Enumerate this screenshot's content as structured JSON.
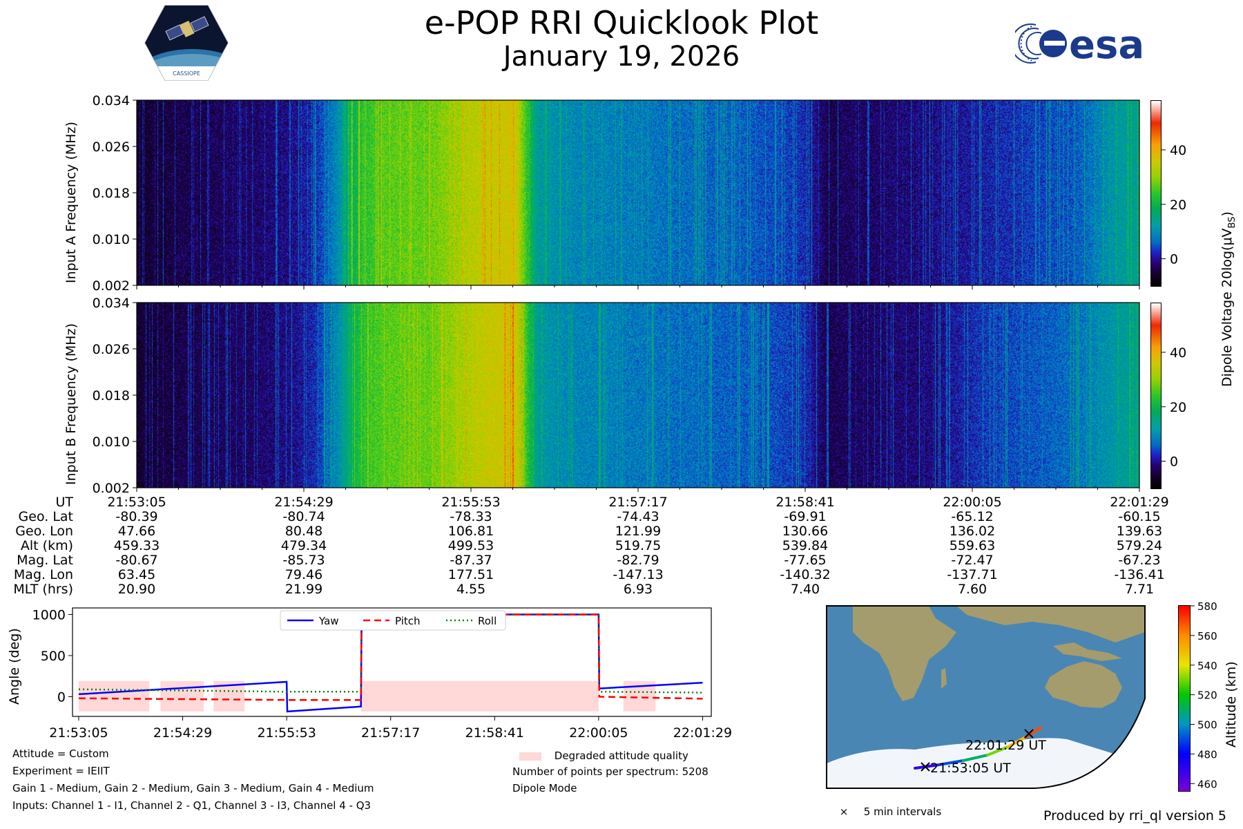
{
  "header": {
    "title": "e-POP RRI Quicklook Plot",
    "subtitle": "January 19, 2026",
    "left_logo": "CASSIOPE",
    "right_logo": "esa"
  },
  "colors": {
    "yaw": "#0000ff",
    "pitch": "#ff0000",
    "roll": "#008000",
    "degraded": "#ffd8d8",
    "ocean": "#4a86b4",
    "land": "#a49c6c",
    "ice": "#f2f6fa"
  },
  "chart_data": [
    {
      "type": "heatmap",
      "name": "spectrogram-input-a",
      "ylabel": "Input A Frequency (MHz)",
      "yticks": [
        "0.002",
        "0.010",
        "0.018",
        "0.026",
        "0.034"
      ],
      "ylim": [
        0.002,
        0.034
      ],
      "xtick_labels": [
        "21:53:05",
        "21:54:29",
        "21:55:53",
        "21:57:17",
        "21:58:41",
        "22:00:05",
        "22:01:29"
      ],
      "intensity_profile_db": [
        -6,
        -5,
        -4,
        -4,
        -3,
        -3,
        -2,
        -1,
        2,
        10,
        22,
        26,
        27,
        27,
        30,
        33,
        35,
        36,
        12,
        10,
        9,
        9,
        8,
        8,
        7,
        7,
        6,
        6,
        5,
        4,
        2,
        -4,
        -3,
        -3,
        -2,
        -2,
        -1,
        0,
        1,
        2,
        3,
        4,
        5,
        8,
        12,
        14
      ]
    },
    {
      "type": "heatmap",
      "name": "spectrogram-input-b",
      "ylabel": "Input B Frequency (MHz)",
      "yticks": [
        "0.002",
        "0.010",
        "0.018",
        "0.026",
        "0.034"
      ],
      "ylim": [
        0.002,
        0.034
      ],
      "xtick_labels": [
        "21:53:05",
        "21:54:29",
        "21:55:53",
        "21:57:17",
        "21:58:41",
        "22:00:05",
        "22:01:29"
      ],
      "intensity_profile_db": [
        -6,
        -5,
        -4,
        -4,
        -3,
        -3,
        -2,
        -1,
        2,
        10,
        22,
        26,
        27,
        27,
        30,
        33,
        35,
        36,
        12,
        10,
        9,
        9,
        8,
        8,
        7,
        7,
        6,
        6,
        5,
        4,
        2,
        -4,
        -3,
        -3,
        -2,
        -2,
        -1,
        1,
        3,
        4,
        5,
        6,
        7,
        9,
        12,
        14
      ]
    },
    {
      "type": "colorbar",
      "name": "dipole-voltage-colorbar",
      "label": "Dipole Voltage 20log(μV",
      "label_sub": "B",
      "label_suffix": "S",
      "label_close": ")",
      "ticks": [
        "0",
        "20",
        "40"
      ],
      "tick_values": [
        0,
        20,
        40
      ],
      "range": [
        -10,
        58
      ]
    },
    {
      "type": "line",
      "name": "attitude-chart",
      "ylabel": "Angle (deg)",
      "yticks": [
        "0",
        "500",
        "1000"
      ],
      "ytick_values": [
        0,
        500,
        1000
      ],
      "ylim": [
        -240,
        1080
      ],
      "xlim": [
        -5,
        511
      ],
      "xticks": [
        0,
        84,
        168,
        252,
        336,
        420,
        504
      ],
      "xtick_labels": [
        "21:53:05",
        "21:54:29",
        "21:55:53",
        "21:57:17",
        "21:58:41",
        "22:00:05",
        "22:01:29"
      ],
      "legend": {
        "position": "upper-center",
        "entries": [
          "Yaw",
          "Pitch",
          "Roll"
        ]
      },
      "series": [
        {
          "name": "Yaw",
          "style": "solid",
          "x": [
            0,
            168,
            168.5,
            228,
            228.5,
            420,
            420.5,
            504
          ],
          "y": [
            30,
            180,
            -180,
            -120,
            1000,
            1000,
            100,
            170
          ]
        },
        {
          "name": "Pitch",
          "style": "dashed",
          "x": [
            0,
            168,
            228,
            228.5,
            420,
            420.5,
            504
          ],
          "y": [
            -20,
            -40,
            -40,
            1000,
            1000,
            0,
            -25
          ]
        },
        {
          "name": "Roll",
          "style": "dotted",
          "x": [
            0,
            168,
            228,
            228.5,
            420,
            420.5,
            504
          ],
          "y": [
            90,
            60,
            60,
            1000,
            1000,
            60,
            50
          ]
        }
      ],
      "degraded_intervals": [
        [
          0,
          57
        ],
        [
          66,
          101
        ],
        [
          109,
          134
        ],
        [
          228,
          420
        ],
        [
          440,
          466
        ]
      ],
      "degraded_range": [
        -180,
        190
      ]
    },
    {
      "type": "colorbar",
      "name": "altitude-colorbar",
      "label": "Altitude (km)",
      "ticks": [
        "460",
        "480",
        "500",
        "520",
        "540",
        "560",
        "580"
      ],
      "tick_values": [
        460,
        480,
        500,
        520,
        540,
        560,
        580
      ],
      "range": [
        455,
        580
      ]
    },
    {
      "type": "scatter",
      "name": "orbit-track-map",
      "start_label": "21:53:05 UT",
      "end_label": "22:01:29 UT",
      "marker_legend": "5 min intervals",
      "track_altitude_km": [
        459.33,
        479.34,
        499.53,
        519.75,
        539.84,
        559.63,
        579.24
      ]
    }
  ],
  "ephemeris": {
    "labels": [
      "UT",
      "Geo. Lat",
      "Geo. Lon",
      "Alt (km)",
      "Mag. Lat",
      "Mag. Lon",
      "MLT (hrs)"
    ],
    "columns": [
      [
        "21:53:05",
        "-80.39",
        "47.66",
        "459.33",
        "-80.67",
        "63.45",
        "20.90"
      ],
      [
        "21:54:29",
        "-80.74",
        "80.48",
        "479.34",
        "-85.73",
        "79.46",
        "21.99"
      ],
      [
        "21:55:53",
        "-78.33",
        "106.81",
        "499.53",
        "-87.37",
        "177.51",
        "4.55"
      ],
      [
        "21:57:17",
        "-74.43",
        "121.99",
        "519.75",
        "-82.79",
        "-147.13",
        "6.93"
      ],
      [
        "21:58:41",
        "-69.91",
        "130.66",
        "539.84",
        "-77.65",
        "-140.32",
        "7.40"
      ],
      [
        "22:00:05",
        "-65.12",
        "136.02",
        "559.63",
        "-72.47",
        "-137.71",
        "7.60"
      ],
      [
        "22:01:29",
        "-60.15",
        "139.63",
        "579.24",
        "-67.23",
        "-136.41",
        "7.71"
      ]
    ]
  },
  "info": {
    "attitude": "Attitude = Custom",
    "experiment": "Experiment = IEIIT",
    "gains": "Gain 1 - Medium, Gain 2 - Medium, Gain 3 - Medium, Gain 4 - Medium",
    "inputs": "Inputs: Channel 1 - I1, Channel 2 - Q1, Channel 3 - I3, Channel 4 - Q3",
    "degraded_legend": "Degraded attitude quality",
    "points_per_spectrum": "Number of points per spectrum: 5208",
    "mode": "Dipole Mode"
  },
  "footer": {
    "produced_by": "Produced by rri_ql version 5"
  }
}
